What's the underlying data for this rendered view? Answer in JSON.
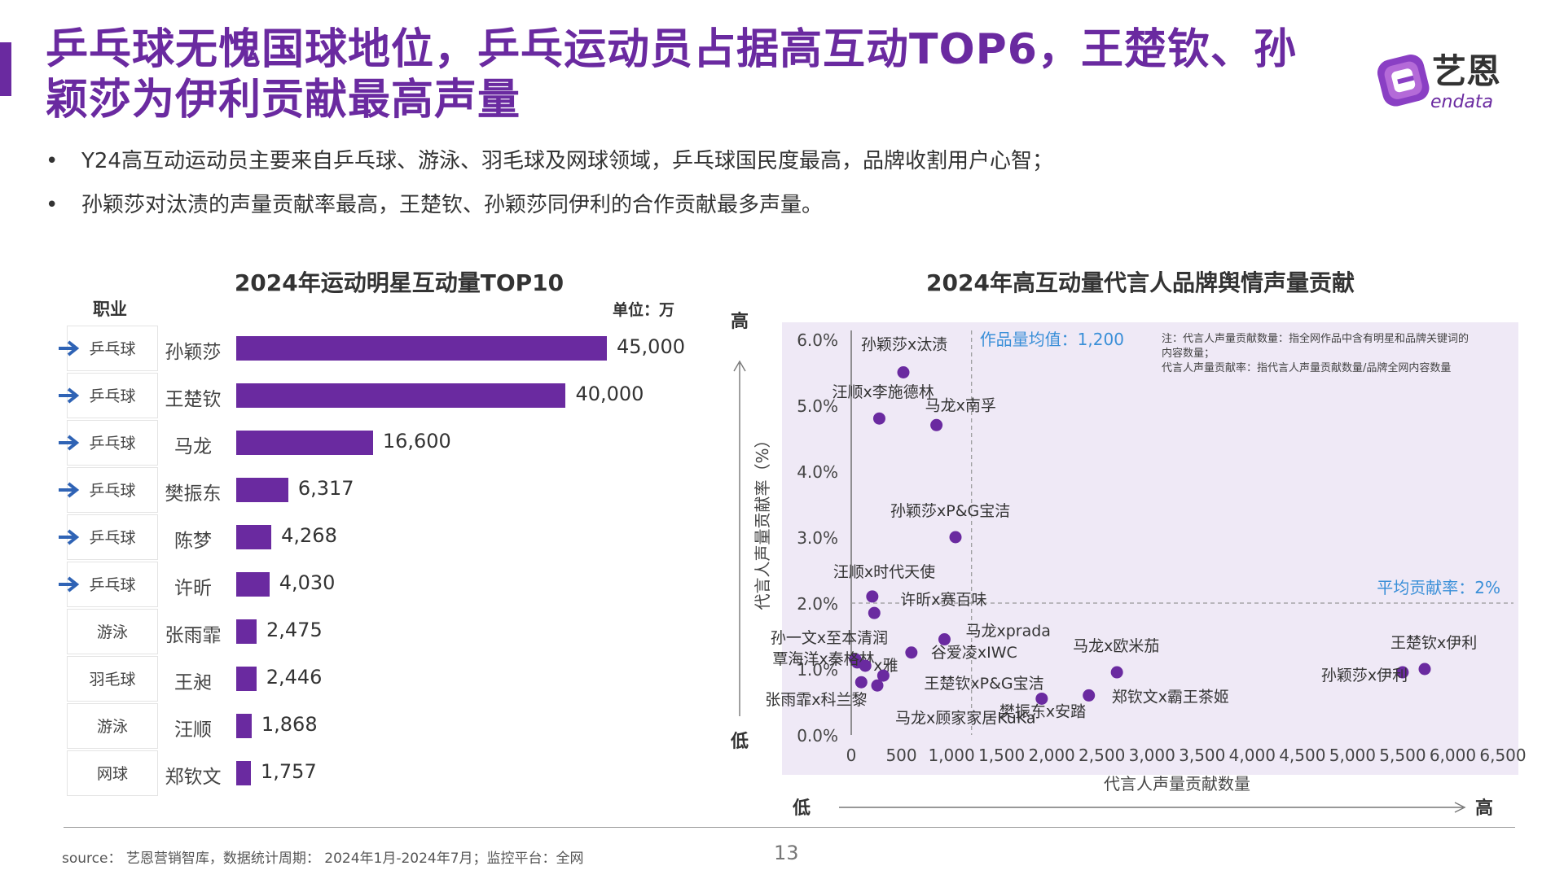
{
  "header": {
    "title_line1": "乒乓球无愧国球地位，乒乓运动员占据高互动TOP6，王楚钦、孙",
    "title_line2": "颖莎为伊利贡献最高声量",
    "logo_text": "艺恩",
    "logo_sub": "endata"
  },
  "bullets": [
    "Y24高互动运动员主要来自乒乓球、游泳、羽毛球及网球领域，乒乓球国民度最高，品牌收割用户心智；",
    "孙颖莎对汰渍的声量贡献率最高，王楚钦、孙颖莎同伊利的合作贡献最多声量。"
  ],
  "bullet_symbol": "•",
  "colors": {
    "accent": "#6a2aa0",
    "arrow": "#2f63b5",
    "ref": "#3a8fd8",
    "plot_bg": "#efe9f6"
  },
  "chart_data": [
    {
      "type": "bar",
      "orientation": "horizontal",
      "title": "2024年运动明星互动量TOP10",
      "column_header": "职业",
      "unit": "单位：万",
      "categories": [
        "孙颖莎",
        "王楚钦",
        "马龙",
        "樊振东",
        "陈梦",
        "许昕",
        "张雨霏",
        "王昶",
        "汪顺",
        "郑钦文"
      ],
      "occupations": [
        "乒乓球",
        "乒乓球",
        "乒乓球",
        "乒乓球",
        "乒乓球",
        "乒乓球",
        "游泳",
        "羽毛球",
        "游泳",
        "网球"
      ],
      "values": [
        45000,
        40000,
        16600,
        6317,
        4268,
        4030,
        2475,
        2446,
        1868,
        1757
      ],
      "value_labels": [
        "45,000",
        "40,000",
        "16,600",
        "6,317",
        "4,268",
        "4,030",
        "2,475",
        "2,446",
        "1,868",
        "1,757"
      ],
      "highlighted": [
        true,
        true,
        true,
        true,
        true,
        true,
        false,
        false,
        false,
        false
      ],
      "xlim": [
        0,
        45000
      ]
    },
    {
      "type": "scatter",
      "title": "2024年高互动量代言人品牌舆情声量贡献",
      "xlabel": "代言人声量贡献数量",
      "ylabel": "代言人声量贡献率（%）",
      "xlim": [
        0,
        6500
      ],
      "ylim": [
        0,
        6
      ],
      "x_ticks": [
        "0",
        "500",
        "1,000",
        "1,500",
        "2,000",
        "2,500",
        "3,000",
        "3,500",
        "4,000",
        "4,500",
        "5,000",
        "5,500",
        "6,000",
        "6,500"
      ],
      "y_ticks": [
        "0.0%",
        "1.0%",
        "2.0%",
        "3.0%",
        "4.0%",
        "5.0%",
        "6.0%"
      ],
      "high_label": "高",
      "low_label": "低",
      "x_ref": {
        "value": 1200,
        "label": "作品量均值：1,200"
      },
      "y_ref": {
        "value": 2,
        "label": "平均贡献率：2%"
      },
      "note_lines": [
        "注：代言人声量贡献数量：指全网作品中含有明星和品牌关键词的",
        "内容数量；",
        "代言人声量贡献率：指代言人声量贡献数量/品牌全网内容数量"
      ],
      "points": [
        {
          "label": "孙颖莎x汰渍",
          "x": 520,
          "y": 5.5
        },
        {
          "label": "汪顺x李施德林",
          "x": 280,
          "y": 4.8
        },
        {
          "label": "马龙x南孚",
          "x": 850,
          "y": 4.7
        },
        {
          "label": "孙颖莎xP&G宝洁",
          "x": 1040,
          "y": 3.0
        },
        {
          "label": "汪顺x时代天使",
          "x": 210,
          "y": 2.1
        },
        {
          "label": "许昕x赛百味",
          "x": 230,
          "y": 1.85
        },
        {
          "label": "马龙xprada",
          "x": 930,
          "y": 1.45
        },
        {
          "label": "谷爱凌xIWC",
          "x": 600,
          "y": 1.25
        },
        {
          "label": "孙一文x至本清润",
          "x": 40,
          "y": 1.15
        },
        {
          "label": "覃海洋x秦格林",
          "x": 60,
          "y": 1.1
        },
        {
          "label": "x雅",
          "x": 140,
          "y": 1.05
        },
        {
          "label": "王楚钦xP&G宝洁",
          "x": 320,
          "y": 0.9
        },
        {
          "label": "张雨霏x科兰黎",
          "x": 100,
          "y": 0.8
        },
        {
          "label": "马龙x顾家家居KuKa",
          "x": 260,
          "y": 0.75
        },
        {
          "label": "樊振东x安踏",
          "x": 1900,
          "y": 0.55
        },
        {
          "label": "马龙x欧米茄",
          "x": 2650,
          "y": 0.95
        },
        {
          "label": "郑钦文x霸王茶姬",
          "x": 2370,
          "y": 0.6
        },
        {
          "label": "王楚钦x伊利",
          "x": 5720,
          "y": 1.0
        },
        {
          "label": "孙颖莎x伊利",
          "x": 5500,
          "y": 0.95
        }
      ]
    }
  ],
  "footer": {
    "source": "source： 艺恩营销智库，数据统计周期： 2024年1月-2024年7月；监控平台：全网",
    "page": "13"
  }
}
